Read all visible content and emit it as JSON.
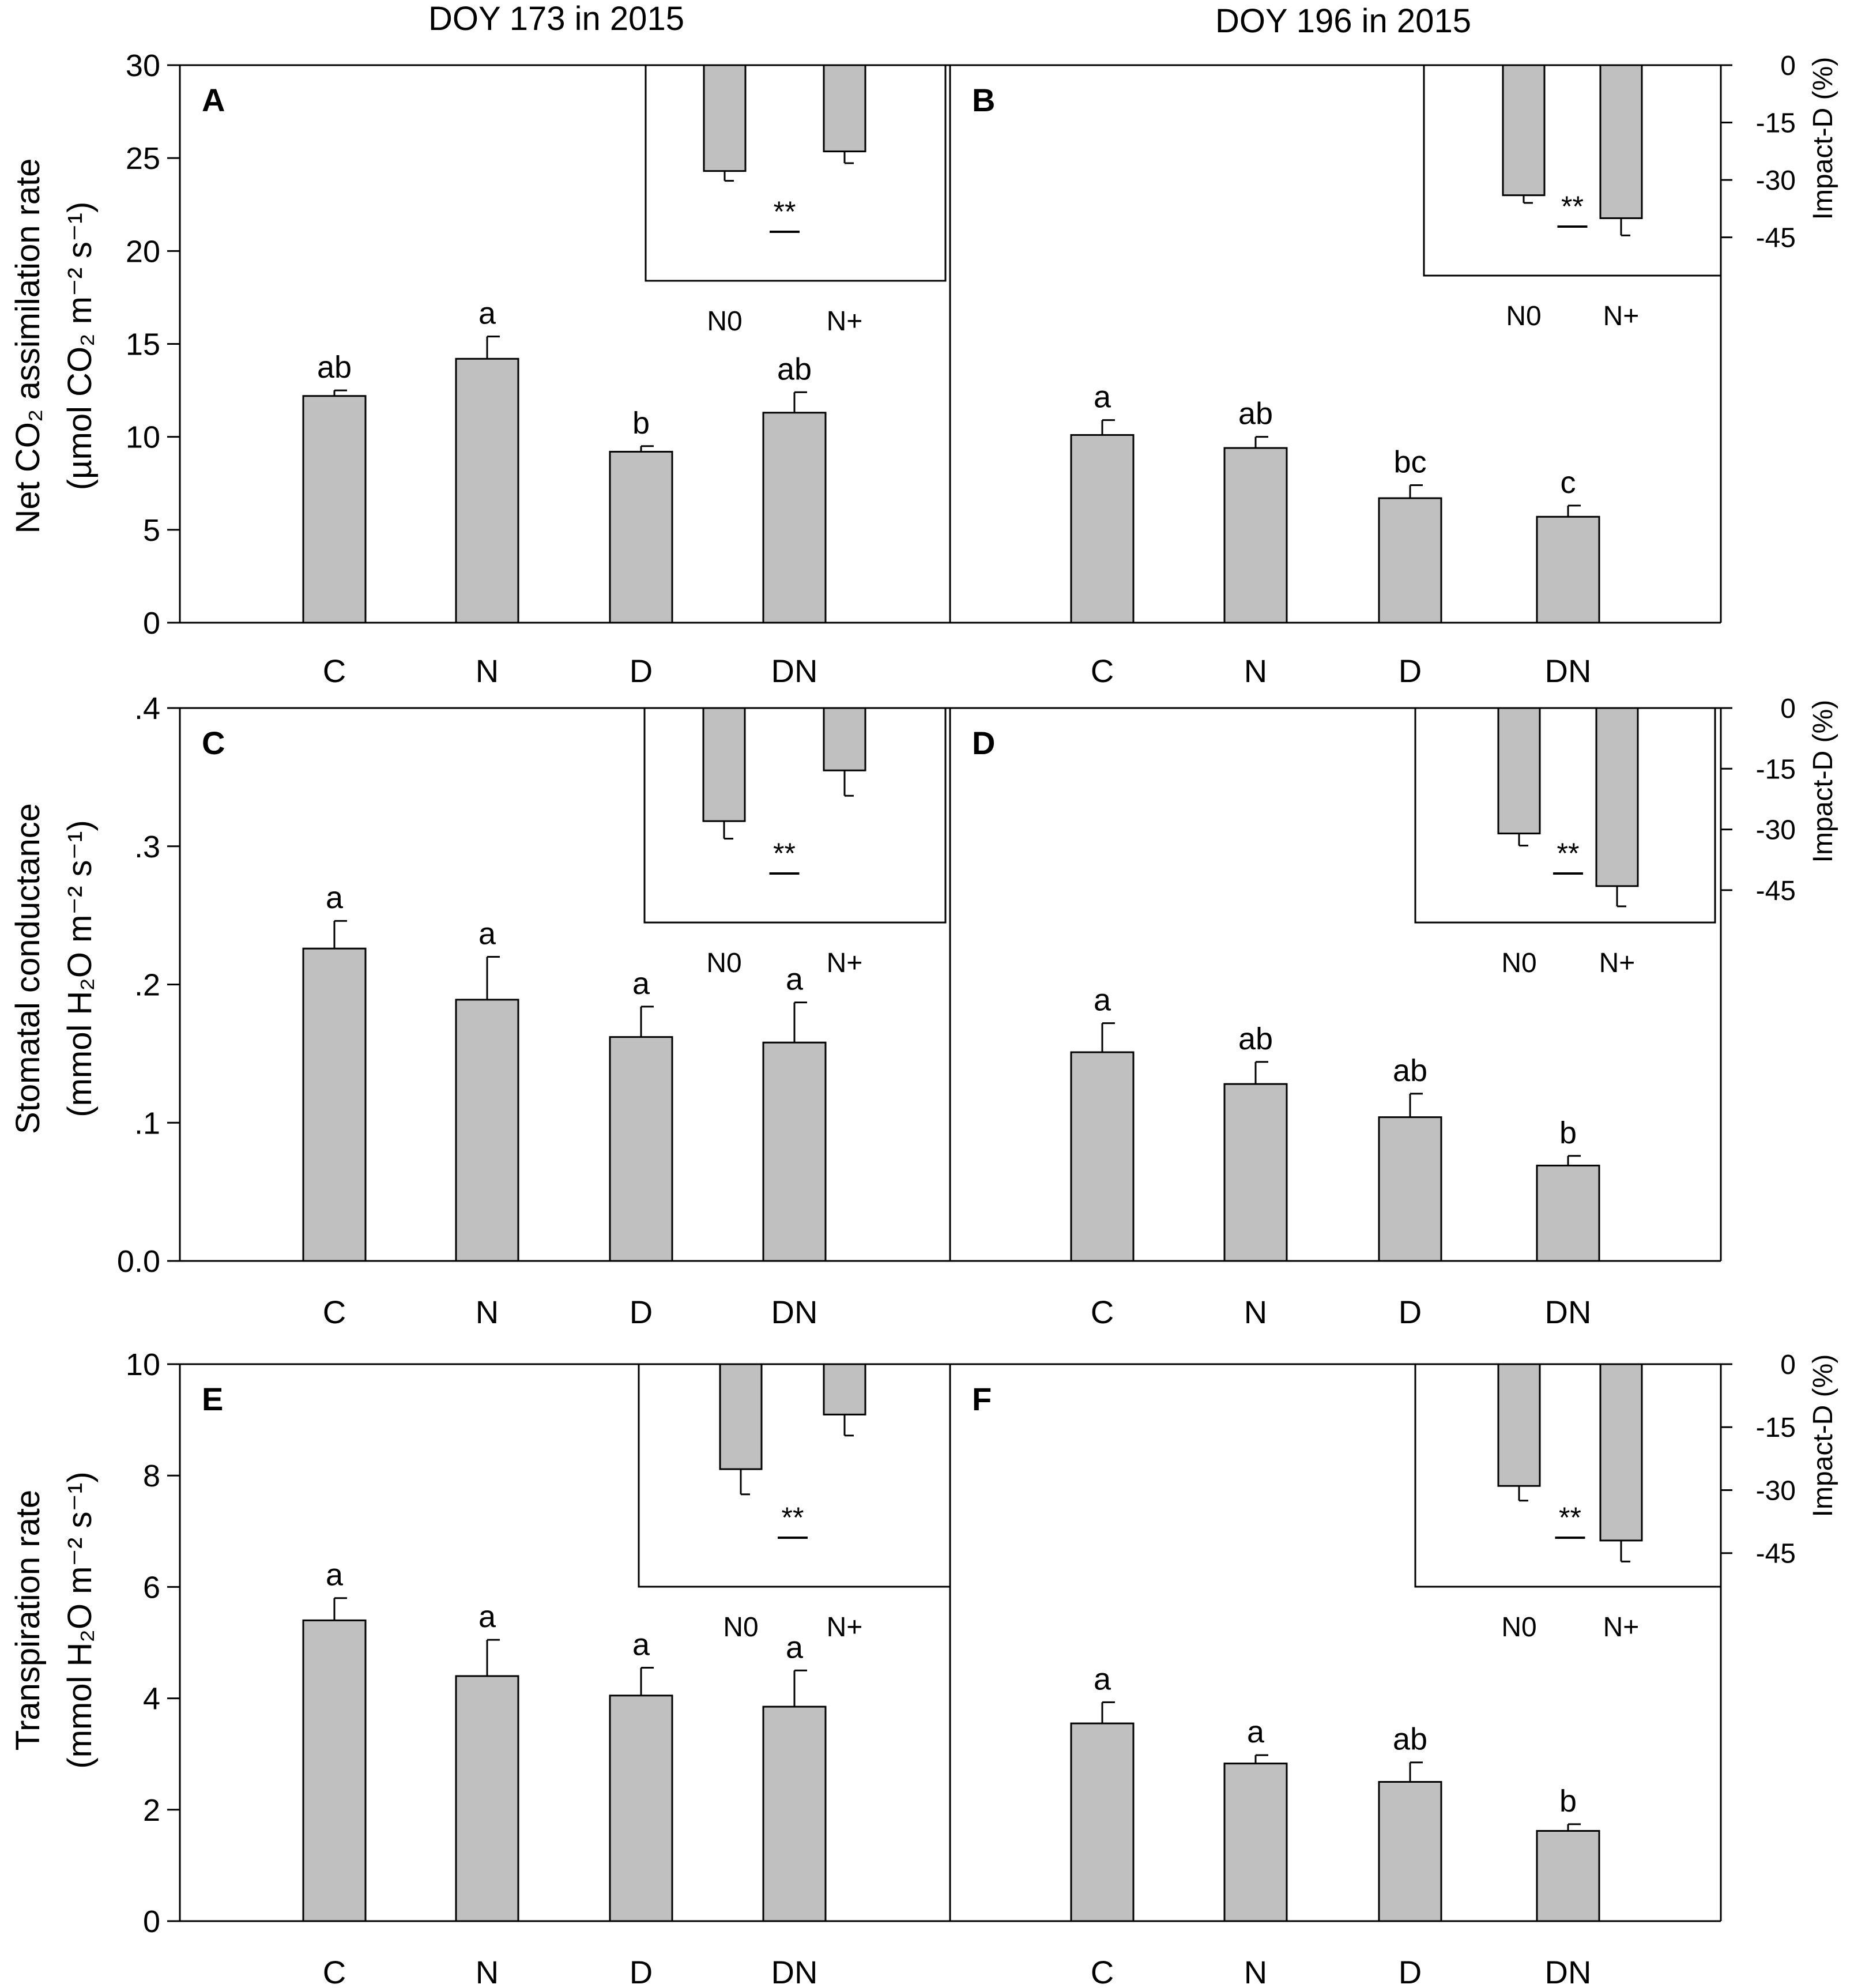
{
  "colors": {
    "bar_fill": "#c0c0c0",
    "stroke": "#000000",
    "background": "#ffffff"
  },
  "column_titles": [
    "DOY 173 in 2015",
    "DOY 196 in 2015"
  ],
  "y_labels": {
    "row1": {
      "line1": "Net CO₂ assimilation rate",
      "line2": "(µmol CO₂ m⁻² s⁻¹)"
    },
    "row2": {
      "line1": "Stomatal conductance",
      "line2": "(mmol H₂O m⁻² s⁻¹)"
    },
    "row3": {
      "line1": "Transpiration rate",
      "line2": "(mmol H₂O m⁻² s⁻¹)"
    }
  },
  "inset_y_label": "Impact-D (%)",
  "chart_data": [
    {
      "type": "bar",
      "panel": "A",
      "categories": [
        "C",
        "N",
        "D",
        "DN"
      ],
      "values": [
        12.2,
        14.2,
        9.2,
        11.3
      ],
      "errors": [
        0.3,
        1.2,
        0.3,
        1.1
      ],
      "letters": [
        "ab",
        "a",
        "b",
        "ab"
      ],
      "ylim": [
        0,
        30
      ],
      "yticks": [
        0,
        5,
        10,
        15,
        20,
        25,
        30
      ],
      "ytick_labels": [
        "0",
        "5",
        "10",
        "15",
        "20",
        "25",
        "30"
      ],
      "inset": {
        "categories": [
          "N0",
          "N+"
        ],
        "values": [
          -27,
          -22
        ],
        "errors": [
          2.5,
          3.0
        ],
        "significance": "**",
        "ylim": [
          -55,
          0
        ]
      }
    },
    {
      "type": "bar",
      "panel": "B",
      "categories": [
        "C",
        "N",
        "D",
        "DN"
      ],
      "values": [
        10.1,
        9.4,
        6.7,
        5.7
      ],
      "errors": [
        0.8,
        0.6,
        0.7,
        0.6
      ],
      "letters": [
        "a",
        "ab",
        "bc",
        "c"
      ],
      "ylim": [
        0,
        30
      ],
      "inset": {
        "categories": [
          "N0",
          "N+"
        ],
        "values": [
          -34,
          -40
        ],
        "errors": [
          2.0,
          4.5
        ],
        "significance": "**",
        "ylim": [
          -55,
          0
        ],
        "yticks": [
          0,
          -15,
          -30,
          -45
        ],
        "ytick_labels": [
          "0",
          "-15",
          "-30",
          "-45"
        ]
      }
    },
    {
      "type": "bar",
      "panel": "C",
      "categories": [
        "C",
        "N",
        "D",
        "DN"
      ],
      "values": [
        0.226,
        0.189,
        0.162,
        0.158
      ],
      "errors": [
        0.02,
        0.031,
        0.022,
        0.029
      ],
      "letters": [
        "a",
        "a",
        "a",
        "a"
      ],
      "ylim": [
        0,
        0.4
      ],
      "yticks": [
        0,
        0.1,
        0.2,
        0.3,
        0.4
      ],
      "ytick_labels": [
        "0.0",
        ".1",
        ".2",
        ".3",
        ".4"
      ],
      "inset": {
        "categories": [
          "N0",
          "N+"
        ],
        "values": [
          -29,
          -16
        ],
        "errors": [
          4.5,
          6.5
        ],
        "significance": "**",
        "ylim": [
          -55,
          0
        ]
      }
    },
    {
      "type": "bar",
      "panel": "D",
      "categories": [
        "C",
        "N",
        "D",
        "DN"
      ],
      "values": [
        0.151,
        0.128,
        0.104,
        0.069
      ],
      "errors": [
        0.021,
        0.016,
        0.017,
        0.007
      ],
      "letters": [
        "a",
        "ab",
        "ab",
        "b"
      ],
      "ylim": [
        0,
        0.4
      ],
      "inset": {
        "categories": [
          "N0",
          "N+"
        ],
        "values": [
          -31,
          -44
        ],
        "errors": [
          3.0,
          5.0
        ],
        "significance": "**",
        "ylim": [
          -53,
          0
        ],
        "yticks": [
          0,
          -15,
          -30,
          -45
        ],
        "ytick_labels": [
          "0",
          "-15",
          "-30",
          "-45"
        ]
      }
    },
    {
      "type": "bar",
      "panel": "E",
      "categories": [
        "C",
        "N",
        "D",
        "DN"
      ],
      "values": [
        5.4,
        4.4,
        4.05,
        3.85
      ],
      "errors": [
        0.4,
        0.65,
        0.5,
        0.65
      ],
      "letters": [
        "a",
        "a",
        "a",
        "a"
      ],
      "ylim": [
        0,
        10
      ],
      "yticks": [
        0,
        2,
        4,
        6,
        8,
        10
      ],
      "ytick_labels": [
        "0",
        "2",
        "4",
        "6",
        "8",
        "10"
      ],
      "inset": {
        "categories": [
          "N0",
          "N+"
        ],
        "values": [
          -25,
          -12
        ],
        "errors": [
          6.0,
          5.0
        ],
        "significance": "**",
        "ylim": [
          -53,
          0
        ]
      }
    },
    {
      "type": "bar",
      "panel": "F",
      "categories": [
        "C",
        "N",
        "D",
        "DN"
      ],
      "values": [
        3.55,
        2.83,
        2.5,
        1.62
      ],
      "errors": [
        0.38,
        0.15,
        0.35,
        0.12
      ],
      "letters": [
        "a",
        "a",
        "ab",
        "b"
      ],
      "ylim": [
        0,
        10
      ],
      "inset": {
        "categories": [
          "N0",
          "N+"
        ],
        "values": [
          -29,
          -42
        ],
        "errors": [
          3.5,
          5.0
        ],
        "significance": "**",
        "ylim": [
          -53,
          0
        ],
        "yticks": [
          0,
          -15,
          -30,
          -45
        ],
        "ytick_labels": [
          "0",
          "-15",
          "-30",
          "-45"
        ]
      }
    }
  ]
}
